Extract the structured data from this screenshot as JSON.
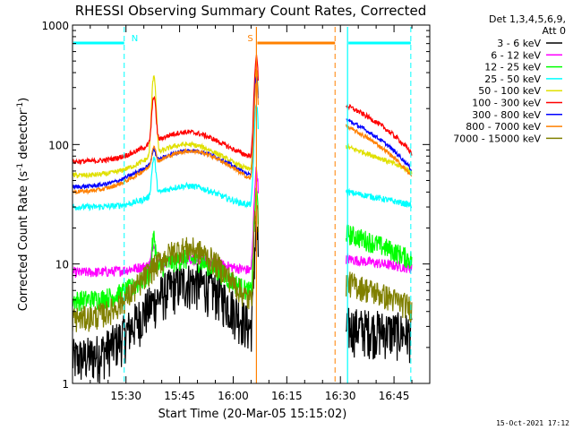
{
  "chart_data": {
    "type": "line",
    "title": "RHESSI Observing Summary Count Rates, Corrected",
    "xlabel": "Start Time (20-Mar-05 15:15:02)",
    "ylabel_main": "Corrected Count Rate (s",
    "ylabel_sup1": "-1",
    "ylabel_mid": " detector",
    "ylabel_sup2": "-1",
    "ylabel_end": ")",
    "x_ticks": [
      "15:30",
      "15:45",
      "16:00",
      "16:15",
      "16:30",
      "16:45"
    ],
    "x_tick_minutes": [
      30,
      45,
      60,
      75,
      90,
      105
    ],
    "x_range_minutes": [
      15.04,
      115
    ],
    "y_scale": "log",
    "y_range": [
      1,
      1000
    ],
    "y_tick_labels": [
      "1",
      "10",
      "100",
      "1000"
    ],
    "y_tick_values": [
      1,
      10,
      100,
      1000
    ],
    "legend_header": [
      "Det 1,3,4,5,6,9,",
      "Att 0"
    ],
    "series": [
      {
        "name": "3 - 6 keV",
        "color": "#000000"
      },
      {
        "name": "6 - 12 keV",
        "color": "#ff00ff"
      },
      {
        "name": "12 - 25 keV",
        "color": "#00ff00"
      },
      {
        "name": "25 - 50 keV",
        "color": "#00ffff"
      },
      {
        "name": "50 - 100 keV",
        "color": "#e0e000"
      },
      {
        "name": "100 - 300 keV",
        "color": "#ff0000"
      },
      {
        "name": "300 - 800 keV",
        "color": "#0000ff"
      },
      {
        "name": "800 - 7000 keV",
        "color": "#ff8000"
      },
      {
        "name": "7000 - 15000 keV",
        "color": "#808000"
      }
    ],
    "annotations": [
      {
        "label": "N",
        "color": "#00ffff",
        "start_min": 15.04,
        "end_min": 29.5
      },
      {
        "label": "S",
        "color": "#ff8000",
        "start_min": 66.5,
        "end_min": 88.5
      },
      {
        "label": "",
        "color": "#00ffff",
        "start_min": 92.0,
        "end_min": 109.7
      }
    ],
    "data_gaps_minutes": [
      [
        67.0,
        91.5
      ]
    ],
    "timestamp": "15-Oct-2021 17:12"
  }
}
